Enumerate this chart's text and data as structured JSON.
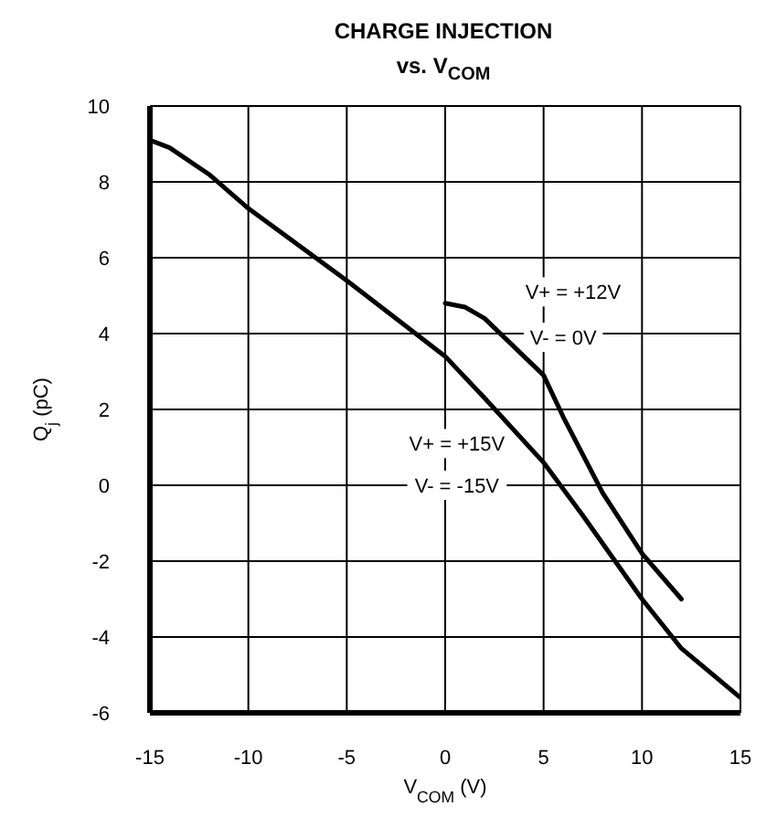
{
  "chart_data": {
    "type": "line",
    "title": "CHARGE INJECTION",
    "subtitle": "vs. V$_{COM}$",
    "xlabel": "V$_{COM}$ (V)",
    "ylabel": "Q$_{j}$ (pC)",
    "xlim": [
      -15,
      15
    ],
    "xticks": [
      -15,
      -10,
      -5,
      0,
      5,
      10,
      15
    ],
    "ylim": [
      -6,
      10
    ],
    "yticks": [
      -6,
      -4,
      -2,
      0,
      2,
      4,
      6,
      8,
      10
    ],
    "grid": true,
    "marker": "none",
    "line_style": "solid",
    "series": [
      {
        "color": "#000000",
        "x": [
          -15,
          -14,
          -12,
          -10,
          -5,
          -2,
          0,
          2,
          5,
          7,
          10,
          12,
          15
        ],
        "values": [
          9.1,
          8.9,
          8.2,
          7.3,
          5.4,
          4.2,
          3.4,
          2.3,
          0.6,
          -0.8,
          -3,
          -4.3,
          -5.6
        ]
      },
      {
        "color": "#000000",
        "x": [
          0,
          1,
          2,
          3,
          5,
          6,
          8,
          10,
          12
        ],
        "values": [
          4.8,
          4.7,
          4.4,
          3.9,
          2.9,
          1.8,
          -0.2,
          -1.8,
          -3
        ]
      }
    ],
    "annotations": [
      "V+ = +12V",
      "V- = 0V",
      "V+ = +15V",
      "V- = -15V"
    ]
  }
}
